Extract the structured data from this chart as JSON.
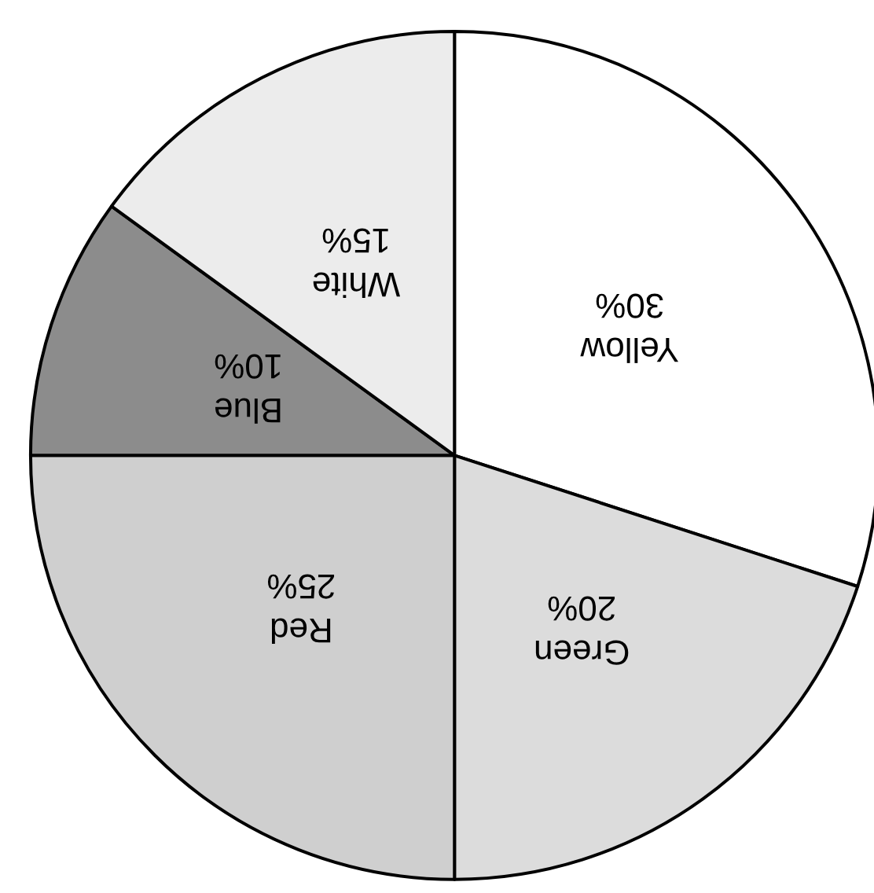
{
  "chart_data": {
    "type": "pie",
    "categories": [
      "Yellow",
      "Green",
      "Red",
      "Blue",
      "White"
    ],
    "values": [
      30,
      20,
      25,
      10,
      15
    ],
    "value_labels": [
      "30%",
      "20%",
      "25%",
      "10%",
      "15%"
    ],
    "colors": [
      "#ffffff",
      "#dcdcdc",
      "#cfcfcf",
      "#8c8c8c",
      "#ececec"
    ],
    "legend": false
  }
}
